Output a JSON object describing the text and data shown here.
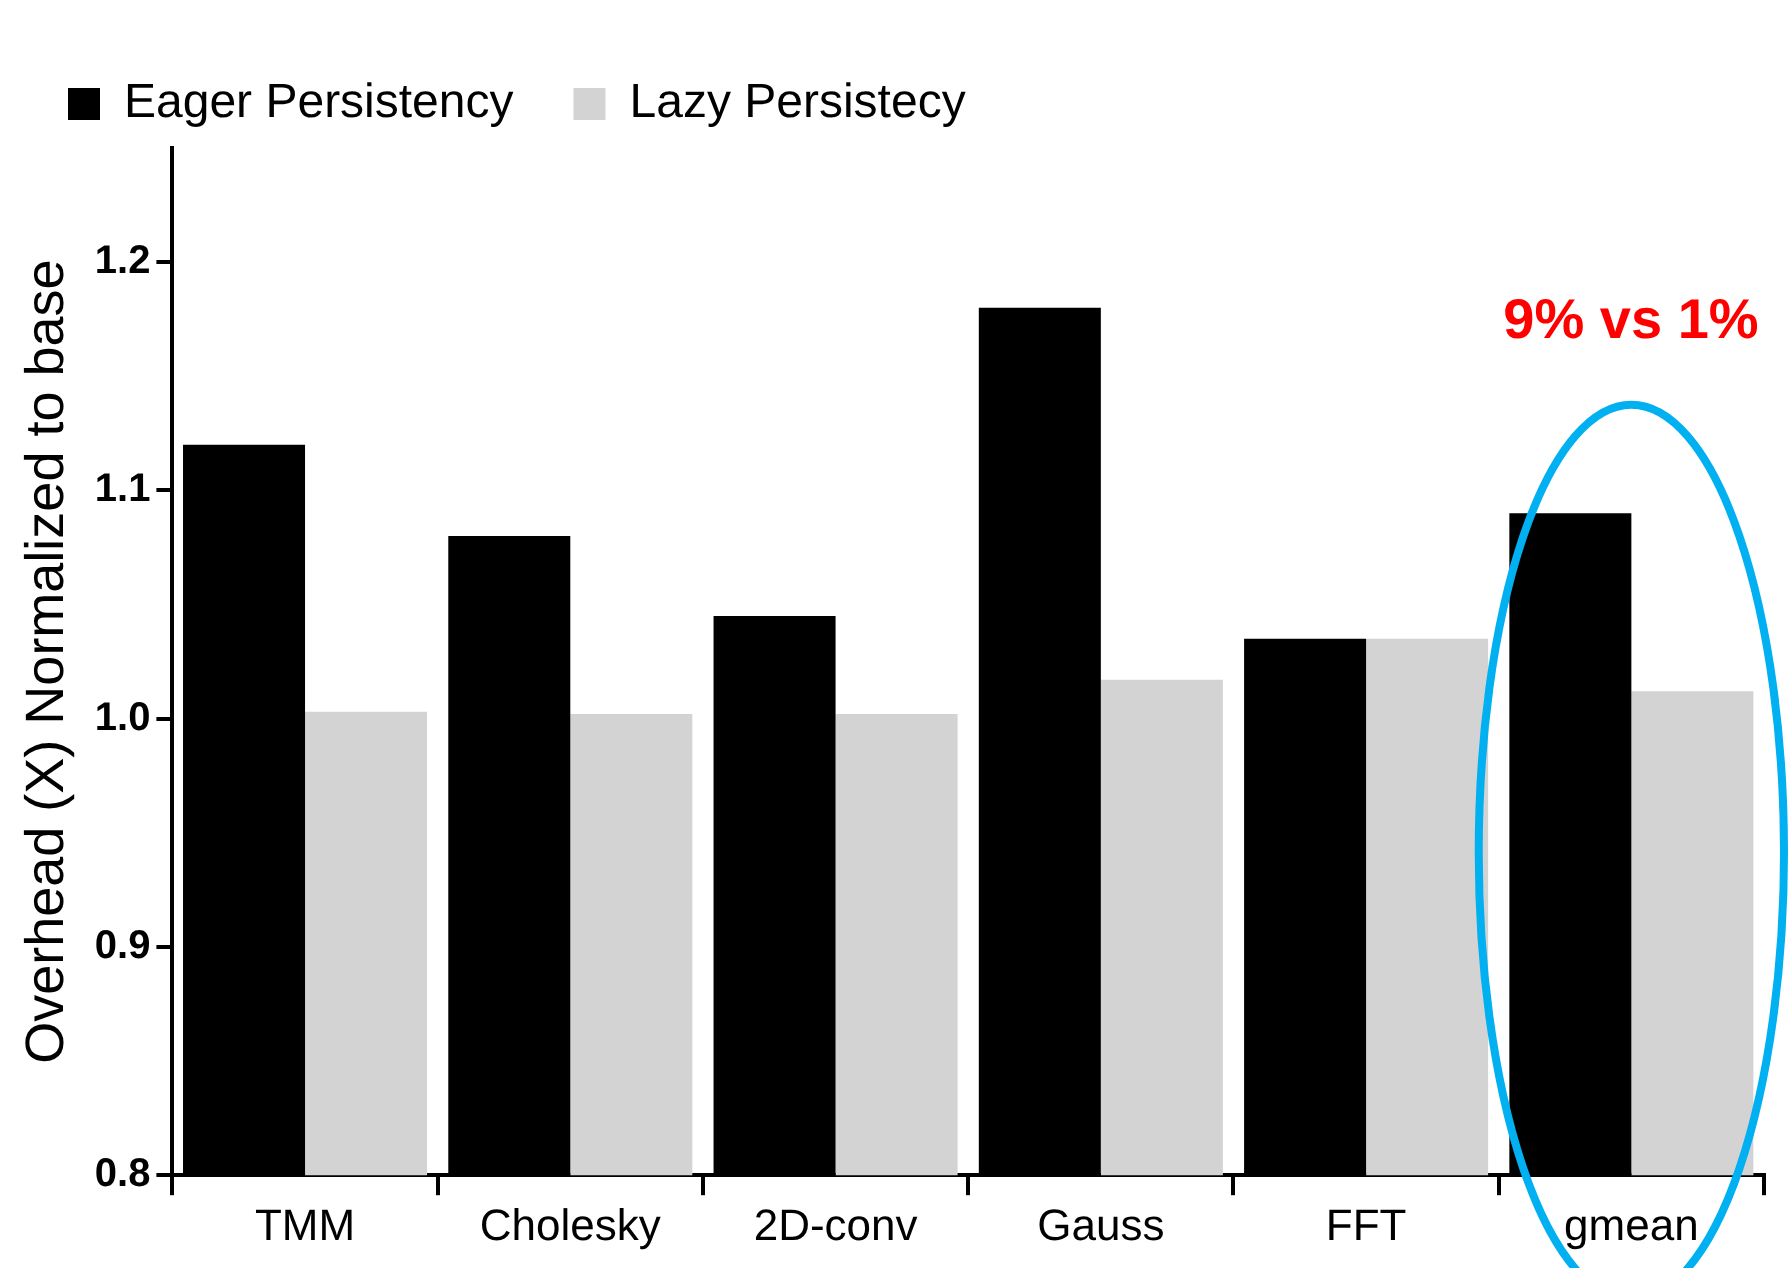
{
  "chart_data": {
    "type": "bar",
    "ylabel": "Overhead (X) Normalized to base",
    "categories": [
      "TMM",
      "Cholesky",
      "2D-conv",
      "Gauss",
      "FFT",
      "gmean"
    ],
    "series": [
      {
        "name": "Eager Persistency",
        "color": "#000000",
        "values": [
          1.12,
          1.08,
          1.045,
          1.18,
          1.035,
          1.09
        ]
      },
      {
        "name": "Lazy Persistecy",
        "color": "#d3d3d3",
        "values": [
          1.003,
          1.002,
          1.002,
          1.017,
          1.035,
          1.012
        ]
      }
    ],
    "ylim": [
      0.8,
      1.25
    ],
    "yticks": [
      0.8,
      0.9,
      {
        "value": 1,
        "label": "1.0"
      },
      1.1,
      1.2
    ],
    "grid": false,
    "legend": "top left",
    "annotations": [
      "9% vs 1%"
    ]
  }
}
